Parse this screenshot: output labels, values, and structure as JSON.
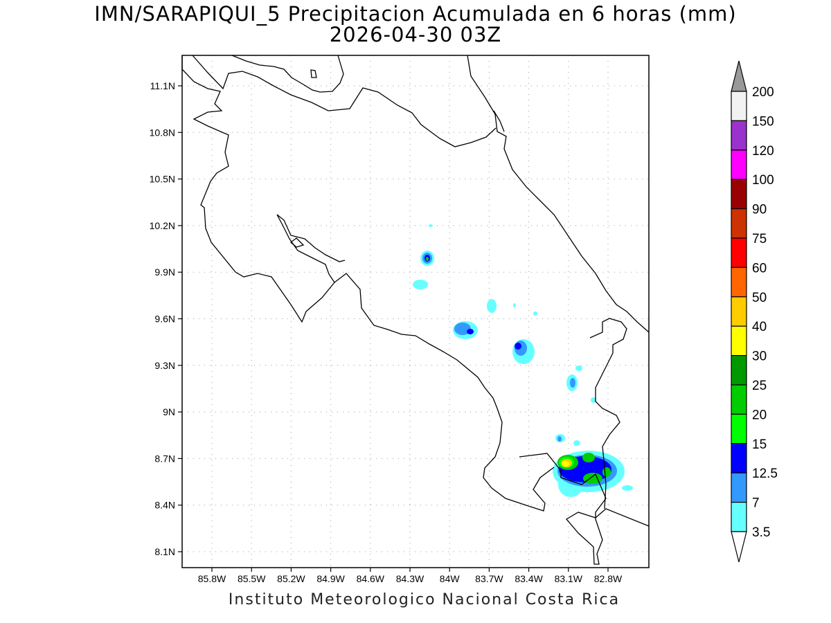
{
  "title": "IMN/SARAPIQUI_5 Precipitacion Acumulada en 6 horas (mm)",
  "subtitle": "2026-04-30 03Z",
  "footer": "Instituto Meteorologico Nacional Costa Rica",
  "map": {
    "lon_range": [
      -86.0,
      -82.5
    ],
    "lat_range": [
      8.0,
      11.3
    ],
    "lat_ticks": [
      "11.1N",
      "10.8N",
      "10.5N",
      "10.2N",
      "9.9N",
      "9.6N",
      "9.3N",
      "9N",
      "8.7N",
      "8.4N",
      "8.1N"
    ],
    "lon_ticks": [
      "85.8W",
      "85.5W",
      "85.2W",
      "84.9W",
      "84.6W",
      "84.3W",
      "84W",
      "83.7W",
      "83.4W",
      "83.1W",
      "82.8W"
    ],
    "grid": "dotted"
  },
  "colorbar": {
    "labels": [
      "200",
      "150",
      "120",
      "100",
      "90",
      "75",
      "60",
      "50",
      "40",
      "30",
      "25",
      "20",
      "15",
      "12.5",
      "7",
      "3.5"
    ],
    "colors": [
      "#ffffff",
      "#f2f2f2",
      "#9933cc",
      "#ff00ff",
      "#990000",
      "#cc3300",
      "#ff0000",
      "#ff6600",
      "#ffcc00",
      "#ffff00",
      "#009900",
      "#00cc00",
      "#00ff00",
      "#0000ff",
      "#3399ff",
      "#66ffff"
    ],
    "top_arrow_color": "#999999",
    "bottom_arrow_color": "#ffffff"
  }
}
